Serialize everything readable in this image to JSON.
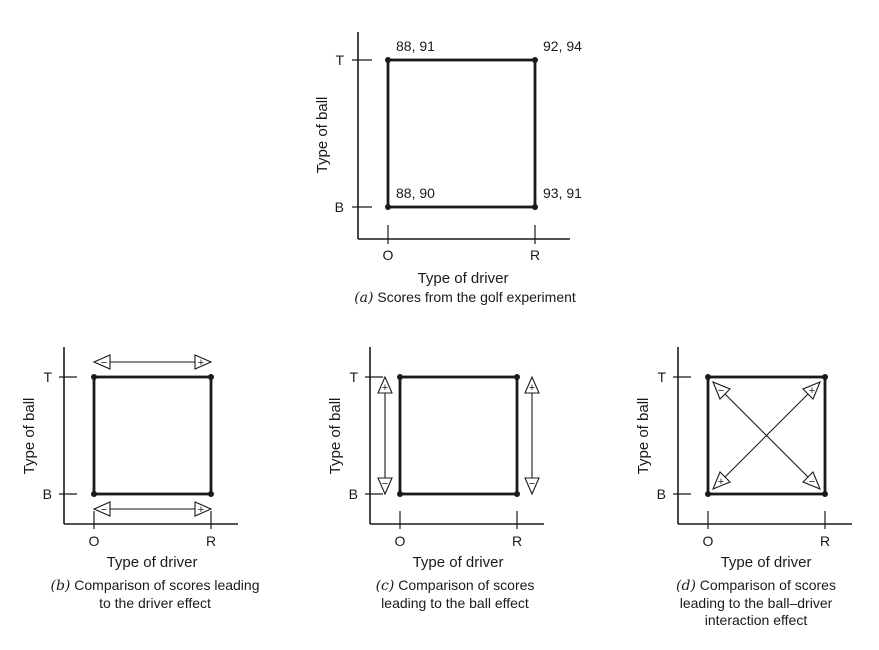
{
  "axis_labels": {
    "x": "Type of driver",
    "y": "Type of ball"
  },
  "ticks": {
    "x": [
      "O",
      "R"
    ],
    "y": [
      "B",
      "T"
    ]
  },
  "panel_a": {
    "scores": {
      "TO": "88, 91",
      "TR": "92, 94",
      "BO": "88, 90",
      "BR": "93, 91"
    },
    "caption_letter": "(a)",
    "caption_text": "Scores from the golf experiment"
  },
  "panel_b": {
    "caption_letter": "(b)",
    "caption_line1": "Comparison of scores leading",
    "caption_line2": "to the driver effect"
  },
  "panel_c": {
    "caption_letter": "(c)",
    "caption_line1": "Comparison of scores",
    "caption_line2": "leading to the ball effect"
  },
  "panel_d": {
    "caption_letter": "(d)",
    "caption_line1": "Comparison of scores",
    "caption_line2": "leading to the ball–driver",
    "caption_line3": "interaction effect"
  },
  "signs": {
    "plus": "+",
    "minus": "−"
  }
}
